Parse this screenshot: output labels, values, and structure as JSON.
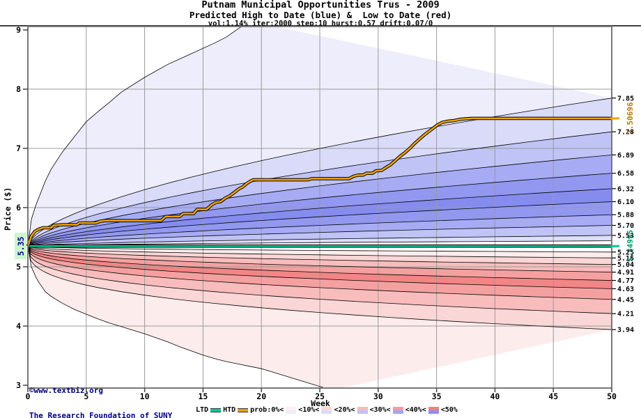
{
  "title": "Putnam Municipal Opportunities Trus - 2009",
  "subtitle": "Predicted High to Date (blue) &  Low to Date (red)",
  "params_line": "vol:1.14% iter:2000 step:10 hurst:0.57 drift:0.07/0",
  "watermark": {
    "line1": "©www.textbiz.org",
    "line2": "The Research Foundation of SUNY"
  },
  "legend": {
    "ltd_label": "LTD",
    "htd_label": "HTD",
    "ltd_color": "#00cc99",
    "htd_color": "#f0a202",
    "prob_labels": [
      "prob:0%<",
      "<10%<",
      "<20%<",
      "<30%<",
      "<40%<",
      "<50%"
    ],
    "swatches": [
      [
        "#fdeeee",
        "#ededfb"
      ],
      [
        "#fbd8d8",
        "#d9dbf9"
      ],
      [
        "#f8baba",
        "#bfc3f6"
      ],
      [
        "#f59c9c",
        "#a0a6f2"
      ],
      [
        "#f38080",
        "#8a91ee"
      ]
    ]
  },
  "theme": {
    "grid_color": "#9a9a9a",
    "frame_color": "#777777",
    "boundary_color": "#000000",
    "navy": "#000080",
    "htd_line_color": "#f0a202",
    "ltd_line_color": "#00cc99",
    "htd_label_color": "#bb7700",
    "ltd_label_color": "#009966",
    "start_label_bg": "#ccf5cc"
  },
  "chart_data": {
    "type": "area",
    "title": "Putnam Municipal Opportunities Trus - 2009",
    "xlabel": "Week",
    "ylabel": "Price ($)",
    "xlim": [
      0,
      50
    ],
    "ylim": [
      3,
      9
    ],
    "x_ticks": [
      0,
      5,
      10,
      15,
      20,
      25,
      30,
      35,
      40,
      45,
      50
    ],
    "y_ticks": [
      9,
      8,
      7,
      6,
      5,
      4,
      3
    ],
    "grid": true,
    "start_price": 5.35,
    "start_label": "5.35",
    "htd_final": 7.50696,
    "htd_final_label": "7.50696",
    "ltd_final": 5.34995,
    "ltd_final_label": "5.34995",
    "right_labels": [
      "7.85",
      "7.28",
      "6.89",
      "6.58",
      "6.32",
      "6.10",
      "5.88",
      "5.70",
      "5.53",
      "5.25",
      "5.15",
      "5.04",
      "4.91",
      "4.77",
      "4.63",
      "4.45",
      "4.21",
      "3.94"
    ],
    "blue_boundary_ends": [
      7.85,
      7.28,
      6.89,
      6.58,
      6.32,
      6.1,
      5.88,
      5.7,
      5.53
    ],
    "blue_inner_end": 5.44,
    "red_boundary_ends": [
      5.25,
      5.15,
      5.04,
      4.91,
      4.77,
      4.63,
      4.45,
      4.21,
      3.94
    ],
    "band_colors_blue": [
      "#ededfb",
      "#d9dbf9",
      "#bfc3f6",
      "#a6abf3",
      "#9298f0",
      "#858cee",
      "#9298f0",
      "#a6abf3",
      "#bfc3f6",
      "#dcdefa"
    ],
    "band_colors_red": [
      "#fdecec",
      "#fbd6d6",
      "#f8bcbc",
      "#f5a0a0",
      "#f28585",
      "#f5a0a0",
      "#f8bcbc",
      "#fbd6d6",
      "#fdecec"
    ],
    "upper_envelope": [
      [
        0,
        5.35
      ],
      [
        0.3,
        5.8
      ],
      [
        0.7,
        6.05
      ],
      [
        1,
        6.2
      ],
      [
        1.5,
        6.45
      ],
      [
        2,
        6.65
      ],
      [
        3,
        6.95
      ],
      [
        4,
        7.2
      ],
      [
        5,
        7.45
      ],
      [
        6,
        7.62
      ],
      [
        7,
        7.78
      ],
      [
        8,
        7.95
      ],
      [
        10,
        8.2
      ],
      [
        12,
        8.42
      ],
      [
        14,
        8.6
      ],
      [
        16,
        8.78
      ],
      [
        17,
        8.88
      ],
      [
        18,
        9.02
      ],
      [
        19,
        9.15
      ]
    ],
    "lower_envelope": [
      [
        0,
        5.35
      ],
      [
        0.3,
        5.0
      ],
      [
        0.7,
        4.82
      ],
      [
        1,
        4.72
      ],
      [
        1.5,
        4.58
      ],
      [
        2,
        4.5
      ],
      [
        3,
        4.38
      ],
      [
        4,
        4.28
      ],
      [
        5,
        4.2
      ],
      [
        6,
        4.12
      ],
      [
        7,
        4.05
      ],
      [
        8,
        3.99
      ],
      [
        9,
        3.93
      ],
      [
        10,
        3.87
      ],
      [
        11,
        3.8
      ],
      [
        12,
        3.73
      ],
      [
        13,
        3.65
      ],
      [
        14,
        3.58
      ],
      [
        15,
        3.51
      ],
      [
        16,
        3.45
      ],
      [
        17,
        3.4
      ],
      [
        18,
        3.36
      ],
      [
        19,
        3.32
      ],
      [
        20,
        3.28
      ],
      [
        21,
        3.22
      ],
      [
        22,
        3.16
      ],
      [
        23,
        3.1
      ],
      [
        24,
        3.04
      ],
      [
        25,
        2.98
      ],
      [
        26,
        2.92
      ]
    ],
    "htd_points": [
      [
        0,
        5.35
      ],
      [
        0.3,
        5.52
      ],
      [
        0.6,
        5.6
      ],
      [
        1,
        5.64
      ],
      [
        1.3,
        5.66
      ],
      [
        2,
        5.66
      ],
      [
        2.2,
        5.7
      ],
      [
        3,
        5.71
      ],
      [
        4.2,
        5.71
      ],
      [
        4.4,
        5.74
      ],
      [
        5.8,
        5.74
      ],
      [
        6.2,
        5.77
      ],
      [
        6.6,
        5.78
      ],
      [
        11.4,
        5.78
      ],
      [
        11.8,
        5.85
      ],
      [
        13,
        5.85
      ],
      [
        13.3,
        5.9
      ],
      [
        14.2,
        5.9
      ],
      [
        14.5,
        5.97
      ],
      [
        15.3,
        5.97
      ],
      [
        15.7,
        6.04
      ],
      [
        16.1,
        6.09
      ],
      [
        16.5,
        6.1
      ],
      [
        16.9,
        6.16
      ],
      [
        17.3,
        6.2
      ],
      [
        17.7,
        6.26
      ],
      [
        18.1,
        6.32
      ],
      [
        18.4,
        6.35
      ],
      [
        18.7,
        6.4
      ],
      [
        19,
        6.44
      ],
      [
        19.3,
        6.47
      ],
      [
        24,
        6.47
      ],
      [
        24.3,
        6.49
      ],
      [
        27.5,
        6.49
      ],
      [
        27.9,
        6.53
      ],
      [
        28.3,
        6.55
      ],
      [
        28.7,
        6.55
      ],
      [
        29,
        6.58
      ],
      [
        29.5,
        6.58
      ],
      [
        29.8,
        6.62
      ],
      [
        30.3,
        6.63
      ],
      [
        30.7,
        6.68
      ],
      [
        31.1,
        6.73
      ],
      [
        31.5,
        6.8
      ],
      [
        31.9,
        6.87
      ],
      [
        32.3,
        6.93
      ],
      [
        32.7,
        7.0
      ],
      [
        33.1,
        7.08
      ],
      [
        33.5,
        7.15
      ],
      [
        33.9,
        7.22
      ],
      [
        34.3,
        7.28
      ],
      [
        34.7,
        7.34
      ],
      [
        35.1,
        7.4
      ],
      [
        35.5,
        7.44
      ],
      [
        36,
        7.46
      ],
      [
        36.5,
        7.47
      ],
      [
        37,
        7.49
      ],
      [
        37.5,
        7.5
      ],
      [
        38,
        7.507
      ],
      [
        50,
        7.507
      ]
    ]
  }
}
